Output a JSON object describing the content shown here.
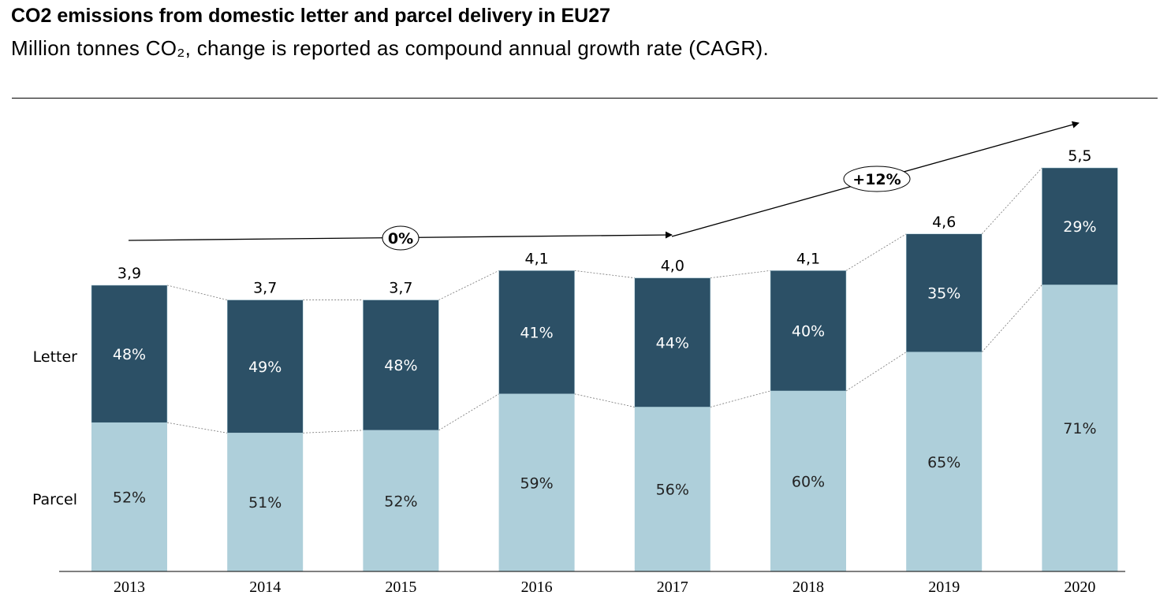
{
  "title": "CO2 emissions from domestic letter and parcel delivery in EU27",
  "subtitle": "Million tonnes CO₂, change is reported as compound annual growth rate (CAGR).",
  "chart_data": {
    "type": "bar",
    "stacked": true,
    "categories": [
      "2013",
      "2014",
      "2015",
      "2016",
      "2017",
      "2018",
      "2019",
      "2020"
    ],
    "totals": [
      3.9,
      3.7,
      3.7,
      4.1,
      4.0,
      4.1,
      4.6,
      5.5
    ],
    "total_labels": [
      "3,9",
      "3,7",
      "3,7",
      "4,1",
      "4,0",
      "4,1",
      "4,6",
      "5,5"
    ],
    "series": [
      {
        "name": "Parcel",
        "shares": [
          52,
          51,
          52,
          59,
          56,
          60,
          65,
          71
        ],
        "labels": [
          "52%",
          "51%",
          "52%",
          "59%",
          "56%",
          "60%",
          "65%",
          "71%"
        ],
        "color": "#AECFDA"
      },
      {
        "name": "Letter",
        "shares": [
          48,
          49,
          48,
          41,
          44,
          40,
          35,
          29
        ],
        "labels": [
          "48%",
          "49%",
          "48%",
          "41%",
          "44%",
          "40%",
          "35%",
          "29%"
        ],
        "color": "#2C5066"
      }
    ],
    "annotations": [
      {
        "label": "0%",
        "from": "2013",
        "to": "2017"
      },
      {
        "label": "+12%",
        "from": "2017",
        "to": "2020"
      }
    ],
    "ylim": [
      0,
      5.5
    ],
    "grid": false
  }
}
